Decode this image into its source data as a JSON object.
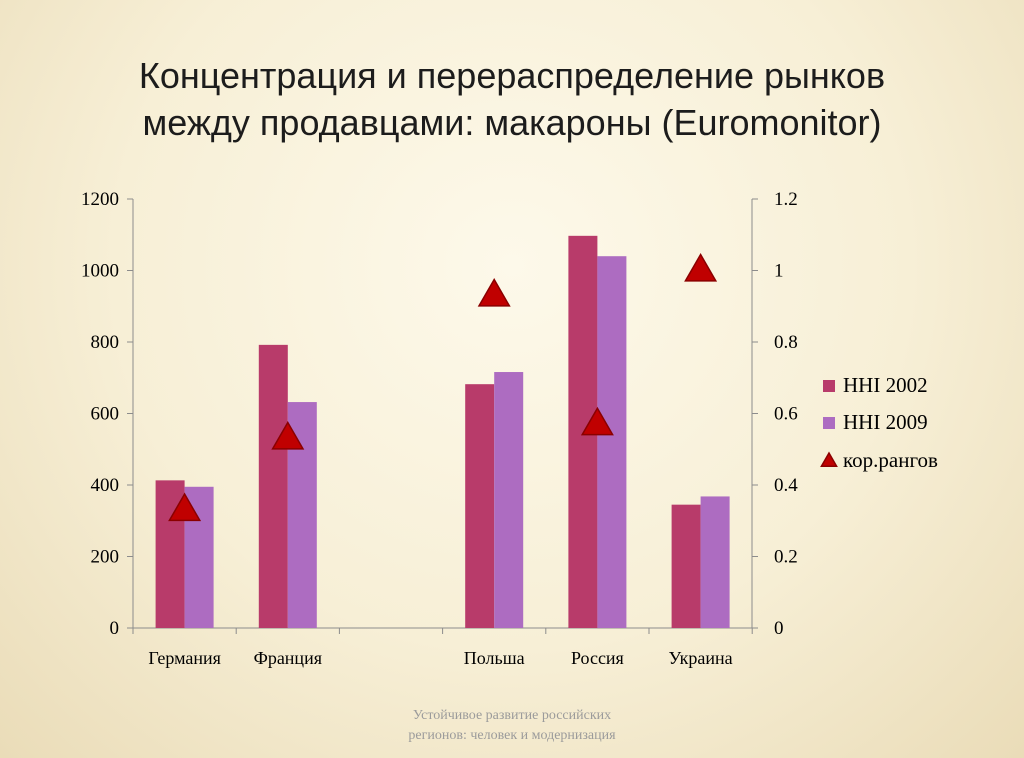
{
  "title": {
    "line1": "Концентрация и перераспределение рынков",
    "line2": "между продавцами: макароны (Euromonitor)"
  },
  "footer": {
    "line1": "Устойчивое развитие российских",
    "line2": "регионов: человек и модернизация"
  },
  "chart_data": {
    "type": "bar",
    "categories": [
      "Германия",
      "Франция",
      "",
      "Польша",
      "Россия",
      "Украина"
    ],
    "series": [
      {
        "name": "HHI 2002",
        "kind": "bar",
        "axis": "left",
        "color": "#b83b6a",
        "values": [
          413,
          792,
          null,
          682,
          1097,
          345
        ]
      },
      {
        "name": "HHI 2009",
        "kind": "bar",
        "axis": "left",
        "color": "#ad6cc1",
        "values": [
          395,
          632,
          null,
          716,
          1040,
          368
        ]
      },
      {
        "name": "кор.рангов",
        "kind": "marker",
        "marker": "triangle",
        "axis": "right",
        "color": "#c00000",
        "values": [
          0.33,
          0.53,
          null,
          0.93,
          0.57,
          1.0
        ]
      }
    ],
    "y_left": {
      "min": 0,
      "max": 1200,
      "step": 200,
      "ticks": [
        "0",
        "200",
        "400",
        "600",
        "800",
        "1000",
        "1200"
      ]
    },
    "y_right": {
      "min": 0,
      "max": 1.2,
      "step": 0.2,
      "ticks": [
        "0",
        "0.2",
        "0.4",
        "0.6",
        "0.8",
        "1",
        "1.2"
      ]
    },
    "grid": false,
    "legend": "right"
  }
}
